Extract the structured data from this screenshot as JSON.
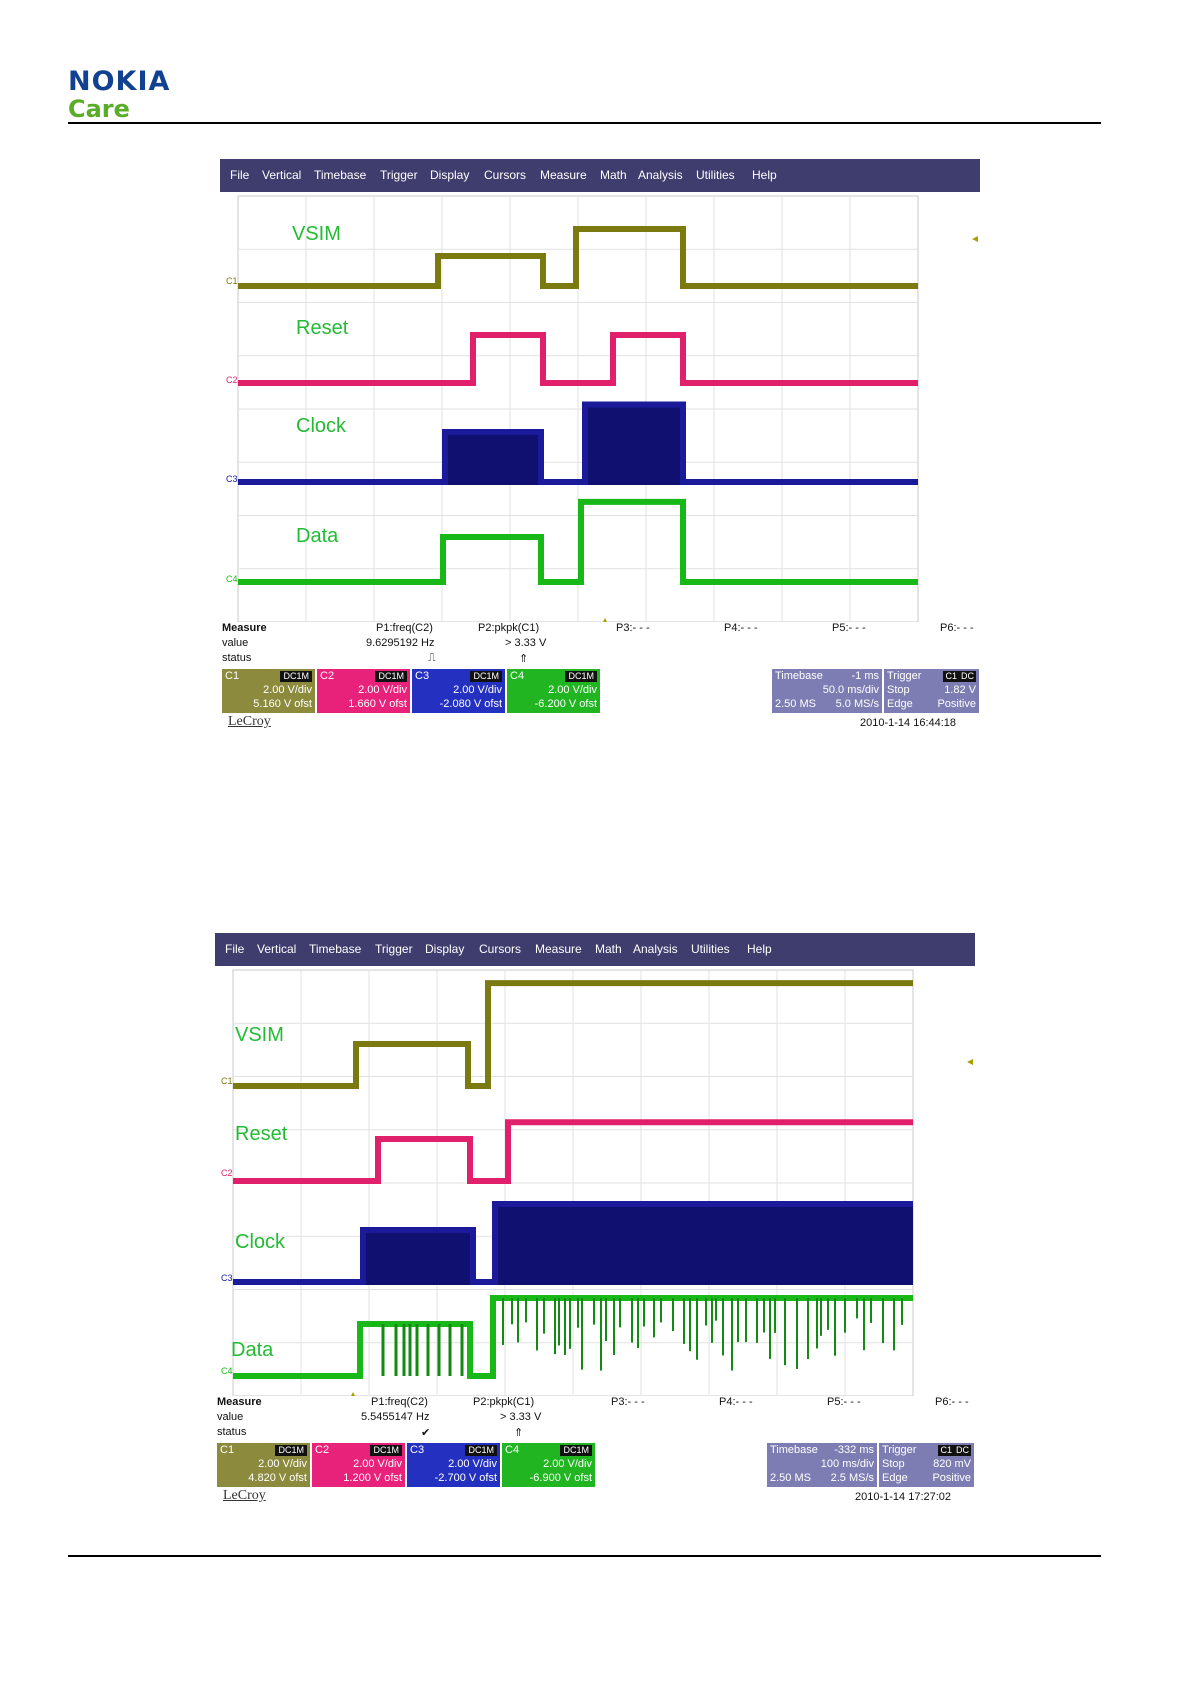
{
  "logo": {
    "brand": "NOKIA",
    "sub": "Care"
  },
  "colors": {
    "c1": "#7a7a10",
    "c2": "#e0206a",
    "c3": "#1a1a9a",
    "c4": "#18b818",
    "menubar": "#3e3d6e",
    "panel": "#7d7db3"
  },
  "scopes": [
    {
      "menu": [
        "File",
        "Vertical",
        "Timebase",
        "Trigger",
        "Display",
        "Cursors",
        "Measure",
        "Math",
        "Analysis",
        "Utilities",
        "Help"
      ],
      "signals": [
        "VSIM",
        "Reset",
        "Clock",
        "Data"
      ],
      "channel_markers": [
        "C1",
        "C2",
        "C3",
        "C4"
      ],
      "measure": {
        "heading": "Measure",
        "row_value": "value",
        "row_status": "status",
        "p1_name": "P1:freq(C2)",
        "p1_value": "9.6295192 Hz",
        "p1_status": "⎍",
        "p2_name": "P2:pkpk(C1)",
        "p2_value": "> 3.33 V",
        "p2_status": "⇑",
        "p3": "P3:- - -",
        "p4": "P4:- - -",
        "p5": "P5:- - -",
        "p6": "P6:- - -"
      },
      "channels": [
        {
          "name": "C1",
          "coupling": "DC1M",
          "vdiv": "2.00 V/div",
          "offset": "5.160 V ofst"
        },
        {
          "name": "C2",
          "coupling": "DC1M",
          "vdiv": "2.00 V/div",
          "offset": "1.660 V ofst"
        },
        {
          "name": "C3",
          "coupling": "DC1M",
          "vdiv": "2.00 V/div",
          "offset": "-2.080 V ofst"
        },
        {
          "name": "C4",
          "coupling": "DC1M",
          "vdiv": "2.00 V/div",
          "offset": "-6.200 V ofst"
        }
      ],
      "timebase": {
        "label": "Timebase",
        "delay": "-1 ms",
        "tdiv": "50.0 ms/div",
        "samples": "2.50 MS",
        "rate": "5.0 MS/s"
      },
      "trigger": {
        "label": "Trigger",
        "ch": "C1",
        "coupling": "DC",
        "mode": "Stop",
        "level": "1.82 V",
        "type": "Edge",
        "slope": "Positive"
      },
      "brand": "LeCroy",
      "timestamp": "2010-1-14 16:44:18",
      "traces": {
        "c1": [
          [
            0,
            0
          ],
          [
            200,
            0
          ],
          [
            200,
            1
          ],
          [
            305,
            1
          ],
          [
            305,
            0
          ],
          [
            338,
            0
          ],
          [
            338,
            1.9
          ],
          [
            445,
            1.9
          ],
          [
            445,
            0
          ],
          [
            680,
            0
          ]
        ],
        "c2": [
          [
            0,
            0
          ],
          [
            235,
            0
          ],
          [
            235,
            1
          ],
          [
            305,
            1
          ],
          [
            305,
            0
          ],
          [
            375,
            0
          ],
          [
            375,
            1
          ],
          [
            445,
            1
          ],
          [
            445,
            0
          ],
          [
            680,
            0
          ]
        ],
        "c3": [
          [
            0,
            0
          ],
          [
            207,
            0
          ],
          [
            207,
            1
          ],
          [
            303,
            1
          ],
          [
            303,
            0
          ],
          [
            347,
            0
          ],
          [
            347,
            1.55
          ],
          [
            445,
            1.55
          ],
          [
            445,
            0
          ],
          [
            680,
            0
          ]
        ],
        "c4": [
          [
            0,
            0
          ],
          [
            205,
            0
          ],
          [
            205,
            1
          ],
          [
            303,
            1
          ],
          [
            303,
            0
          ],
          [
            343,
            0
          ],
          [
            343,
            1.78
          ],
          [
            445,
            1.78
          ],
          [
            445,
            0
          ],
          [
            680,
            0
          ]
        ]
      }
    },
    {
      "menu": [
        "File",
        "Vertical",
        "Timebase",
        "Trigger",
        "Display",
        "Cursors",
        "Measure",
        "Math",
        "Analysis",
        "Utilities",
        "Help"
      ],
      "signals": [
        "VSIM",
        "Reset",
        "Clock",
        "Data"
      ],
      "channel_markers": [
        "C1",
        "C2",
        "C3",
        "C4"
      ],
      "measure": {
        "heading": "Measure",
        "row_value": "value",
        "row_status": "status",
        "p1_name": "P1:freq(C2)",
        "p1_value": "5.5455147 Hz",
        "p1_status": "✔",
        "p2_name": "P2:pkpk(C1)",
        "p2_value": "> 3.33 V",
        "p2_status": "⇑",
        "p3": "P3:- - -",
        "p4": "P4:- - -",
        "p5": "P5:- - -",
        "p6": "P6:- - -"
      },
      "channels": [
        {
          "name": "C1",
          "coupling": "DC1M",
          "vdiv": "2.00 V/div",
          "offset": "4.820 V ofst"
        },
        {
          "name": "C2",
          "coupling": "DC1M",
          "vdiv": "2.00 V/div",
          "offset": "1.200 V ofst"
        },
        {
          "name": "C3",
          "coupling": "DC1M",
          "vdiv": "2.00 V/div",
          "offset": "-2.700 V ofst"
        },
        {
          "name": "C4",
          "coupling": "DC1M",
          "vdiv": "2.00 V/div",
          "offset": "-6.900 V ofst"
        }
      ],
      "timebase": {
        "label": "Timebase",
        "delay": "-332 ms",
        "tdiv": "100 ms/div",
        "samples": "2.50 MS",
        "rate": "2.5 MS/s"
      },
      "trigger": {
        "label": "Trigger",
        "ch": "C1",
        "coupling": "DC",
        "mode": "Stop",
        "level": "820 mV",
        "type": "Edge",
        "slope": "Positive"
      },
      "brand": "LeCroy",
      "timestamp": "2010-1-14 17:27:02",
      "traces": {
        "c1": [
          [
            0,
            0
          ],
          [
            123,
            0
          ],
          [
            123,
            1
          ],
          [
            235,
            1
          ],
          [
            235,
            0
          ],
          [
            255,
            0
          ],
          [
            255,
            2.45
          ],
          [
            680,
            2.45
          ]
        ],
        "c2": [
          [
            0,
            0
          ],
          [
            145,
            0
          ],
          [
            145,
            1
          ],
          [
            237,
            1
          ],
          [
            237,
            0
          ],
          [
            275,
            0
          ],
          [
            275,
            1.4
          ],
          [
            680,
            1.4
          ]
        ],
        "c3": [
          [
            0,
            0
          ],
          [
            130,
            0
          ],
          [
            130,
            1
          ],
          [
            240,
            1
          ],
          [
            240,
            0
          ],
          [
            262,
            0
          ],
          [
            262,
            1.5
          ],
          [
            680,
            1.5
          ]
        ],
        "c4": [
          [
            0,
            0
          ],
          [
            127,
            0
          ],
          [
            127,
            1
          ],
          [
            237,
            1
          ],
          [
            237,
            0
          ],
          [
            260,
            0
          ],
          [
            260,
            1.5
          ],
          [
            680,
            1.5
          ]
        ]
      }
    }
  ]
}
